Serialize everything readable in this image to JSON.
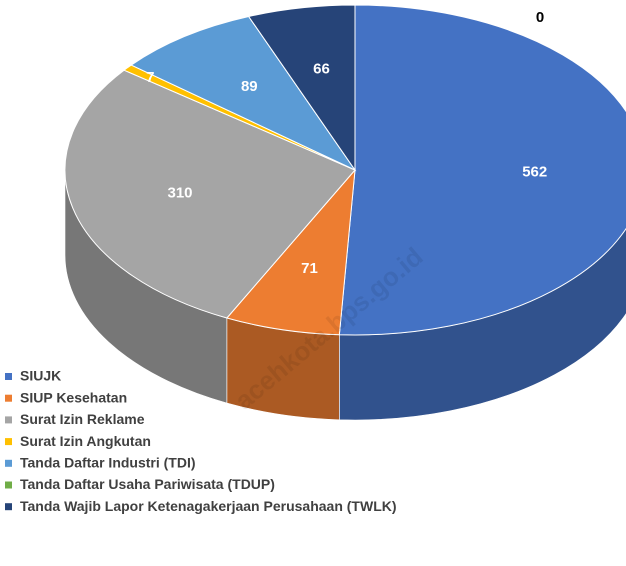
{
  "chart_data": {
    "type": "pie3d",
    "categories": [
      "SIUJK",
      "SIUP Kesehatan",
      "Surat Izin Reklame",
      "Surat Izin Angkutan",
      "Tanda Daftar Industri (TDI)",
      "Tanda Daftar Usaha Pariwisata (TDUP)",
      "Tanda Wajib Lapor Ketenagakerjaan Perusahaan (TWLK)"
    ],
    "values": [
      562,
      71,
      310,
      7,
      89,
      0,
      66
    ],
    "colors": [
      "#4472c4",
      "#ed7d31",
      "#a5a5a5",
      "#ffc000",
      "#5b9bd5",
      "#70ad47",
      "#264478"
    ],
    "legend": "bottom-left",
    "watermark": "acehkota.bps.go.id"
  }
}
